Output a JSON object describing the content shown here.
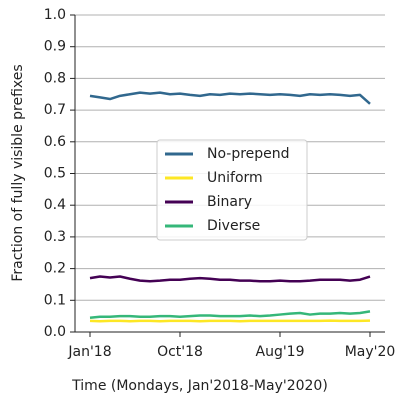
{
  "chart_data": {
    "type": "line",
    "xlabel": "Time (Mondays, Jan'2018-May'2020)",
    "ylabel": "Fraction of fully visible prefixes",
    "categories": [
      "Jan'18",
      null,
      null,
      null,
      null,
      null,
      null,
      null,
      null,
      "Oct'18",
      null,
      null,
      null,
      null,
      null,
      null,
      null,
      null,
      null,
      "Aug'19",
      null,
      null,
      null,
      null,
      null,
      null,
      null,
      null,
      "May'20"
    ],
    "series": [
      {
        "name": "No-prepend",
        "color": "#31688e",
        "values": [
          0.745,
          0.74,
          0.735,
          0.745,
          0.75,
          0.755,
          0.752,
          0.755,
          0.75,
          0.752,
          0.748,
          0.745,
          0.75,
          0.748,
          0.752,
          0.75,
          0.752,
          0.75,
          0.748,
          0.75,
          0.748,
          0.745,
          0.75,
          0.748,
          0.75,
          0.748,
          0.745,
          0.748,
          0.72
        ]
      },
      {
        "name": "Uniform",
        "color": "#fde725",
        "values": [
          0.035,
          0.034,
          0.035,
          0.035,
          0.034,
          0.035,
          0.035,
          0.034,
          0.035,
          0.035,
          0.035,
          0.034,
          0.035,
          0.035,
          0.035,
          0.034,
          0.035,
          0.035,
          0.035,
          0.035,
          0.035,
          0.035,
          0.035,
          0.035,
          0.036,
          0.035,
          0.035,
          0.035,
          0.036
        ]
      },
      {
        "name": "Binary",
        "color": "#440154",
        "values": [
          0.17,
          0.175,
          0.172,
          0.175,
          0.168,
          0.162,
          0.16,
          0.162,
          0.165,
          0.165,
          0.168,
          0.17,
          0.168,
          0.165,
          0.165,
          0.162,
          0.162,
          0.16,
          0.16,
          0.162,
          0.16,
          0.16,
          0.162,
          0.165,
          0.165,
          0.165,
          0.162,
          0.165,
          0.175
        ]
      },
      {
        "name": "Diverse",
        "color": "#35b779",
        "values": [
          0.045,
          0.048,
          0.048,
          0.05,
          0.05,
          0.048,
          0.048,
          0.05,
          0.05,
          0.048,
          0.05,
          0.052,
          0.052,
          0.05,
          0.05,
          0.05,
          0.052,
          0.05,
          0.052,
          0.055,
          0.058,
          0.06,
          0.055,
          0.058,
          0.058,
          0.06,
          0.058,
          0.06,
          0.065
        ]
      }
    ],
    "ylim": [
      0,
      1
    ],
    "yticks": [
      {
        "value": 0,
        "label": "0.0"
      },
      0.1,
      0.2,
      0.3,
      0.4,
      0.5,
      0.6,
      0.7,
      0.8,
      0.9,
      {
        "value": 1,
        "label": "1.0"
      }
    ],
    "grid": true,
    "legend": "center"
  }
}
